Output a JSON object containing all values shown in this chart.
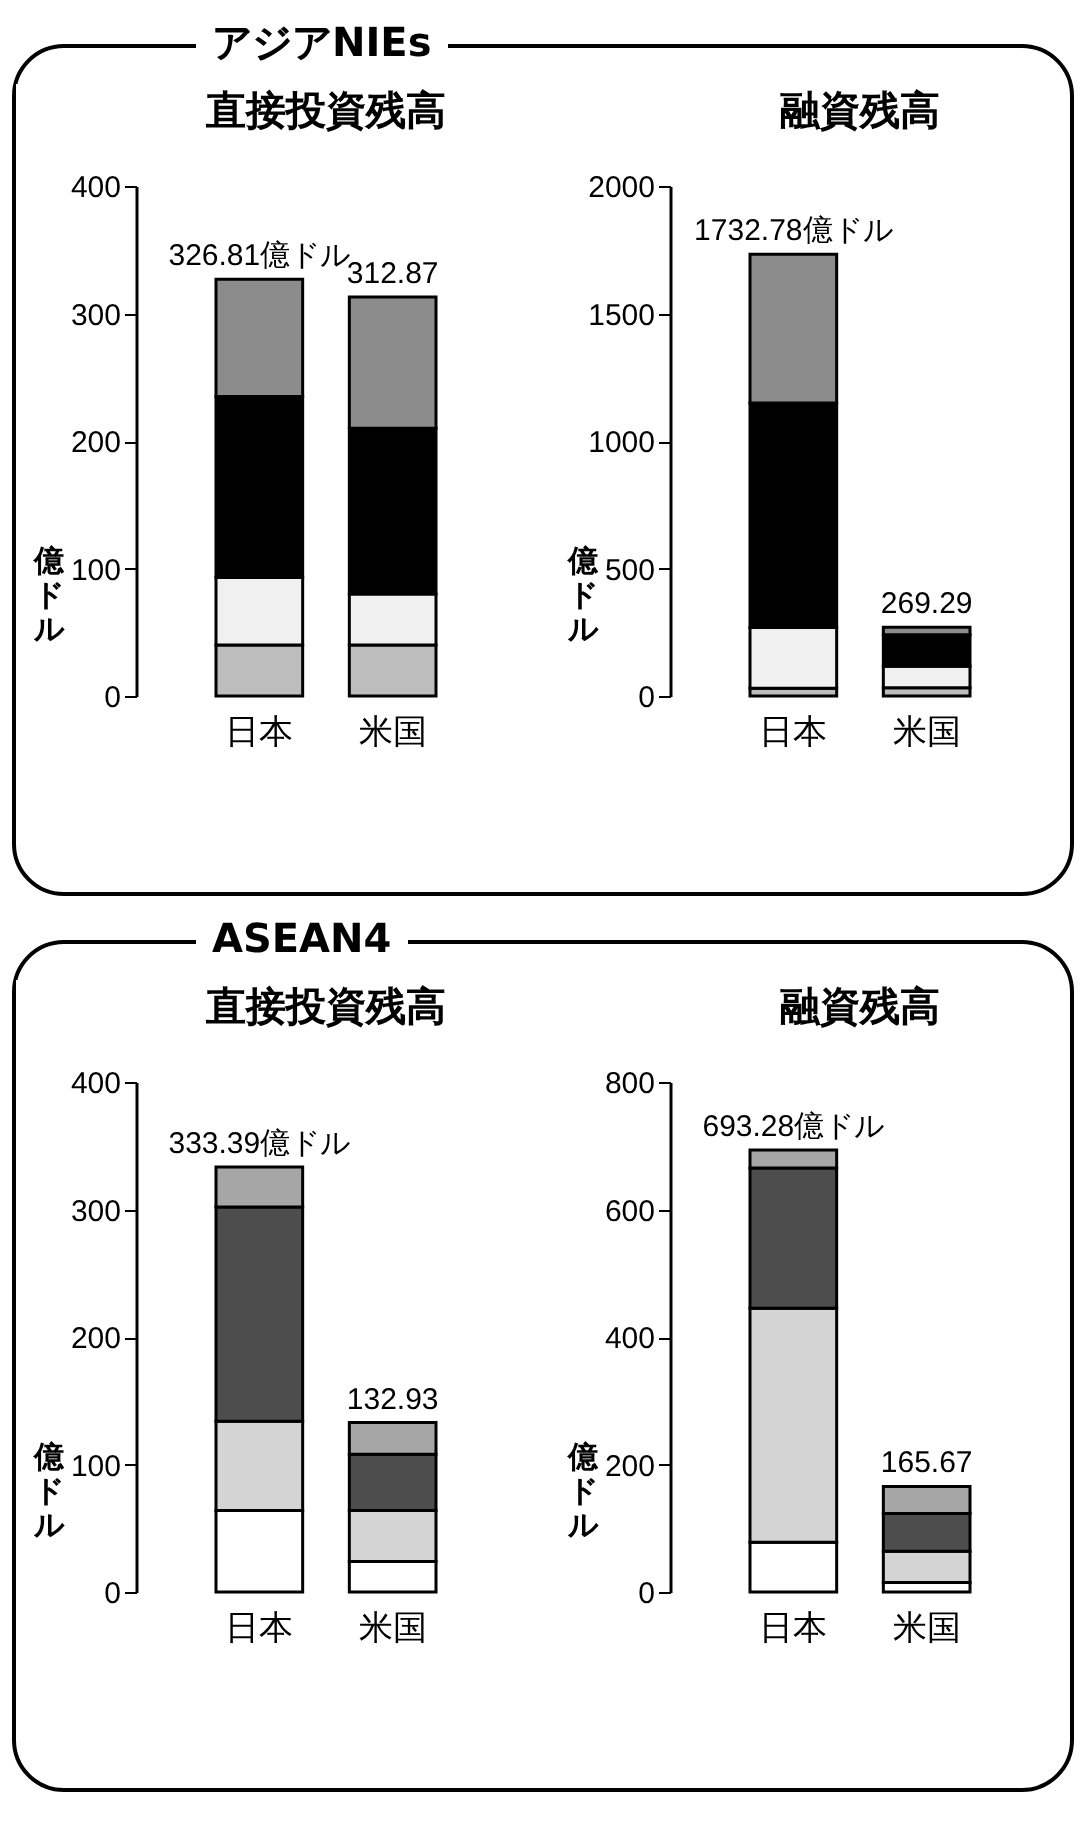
{
  "chart_data": [
    {
      "type": "bar",
      "stacked": true,
      "title": "直接投資残高",
      "ylabel": "億ドル",
      "annotations": [
        "アジアNIEs"
      ],
      "categories": [
        "日本",
        "米国"
      ],
      "ylim": [
        0,
        400
      ],
      "yticks": [
        0,
        100,
        200,
        300,
        400
      ],
      "grid": false,
      "legend": false,
      "totals": [
        "326.81億ドル",
        "312.87"
      ],
      "series": [
        {
          "color": "#bdbdbd",
          "values": [
            40,
            40
          ]
        },
        {
          "color": "#f0f0f0",
          "values": [
            53,
            40
          ]
        },
        {
          "color": "#000000",
          "values": [
            142,
            130
          ]
        },
        {
          "color": "#8c8c8c",
          "values": [
            91.81,
            102.87
          ]
        }
      ]
    },
    {
      "type": "bar",
      "stacked": true,
      "title": "融資残高",
      "ylabel": "億ドル",
      "categories": [
        "日本",
        "米国"
      ],
      "ylim": [
        0,
        2000
      ],
      "yticks": [
        0,
        500,
        1000,
        1500,
        2000
      ],
      "grid": false,
      "legend": false,
      "totals": [
        "1732.78億ドル",
        "269.29"
      ],
      "series": [
        {
          "color": "#bdbdbd",
          "values": [
            30,
            32
          ]
        },
        {
          "color": "#f0f0f0",
          "values": [
            239,
            85
          ]
        },
        {
          "color": "#000000",
          "values": [
            880,
            123
          ]
        },
        {
          "color": "#8c8c8c",
          "values": [
            583.78,
            29.29
          ]
        }
      ]
    },
    {
      "type": "bar",
      "stacked": true,
      "title": "直接投資残高",
      "ylabel": "億ドル",
      "annotations": [
        "ASEAN4"
      ],
      "categories": [
        "日本",
        "米国"
      ],
      "ylim": [
        0,
        400
      ],
      "yticks": [
        0,
        100,
        200,
        300,
        400
      ],
      "grid": false,
      "legend": false,
      "totals": [
        "333.39億ドル",
        "132.93"
      ],
      "series": [
        {
          "color": "#ffffff",
          "values": [
            64,
            24
          ]
        },
        {
          "color": "#d4d4d4",
          "values": [
            70,
            40
          ]
        },
        {
          "color": "#4d4d4d",
          "values": [
            168,
            44
          ]
        },
        {
          "color": "#a6a6a6",
          "values": [
            31.39,
            24.93
          ]
        }
      ]
    },
    {
      "type": "bar",
      "stacked": true,
      "title": "融資残高",
      "ylabel": "億ドル",
      "categories": [
        "日本",
        "米国"
      ],
      "ylim": [
        0,
        800
      ],
      "yticks": [
        0,
        200,
        400,
        600,
        800
      ],
      "grid": false,
      "legend": false,
      "totals": [
        "693.28億ドル",
        "165.67"
      ],
      "series": [
        {
          "color": "#ffffff",
          "values": [
            78,
            15
          ]
        },
        {
          "color": "#d4d4d4",
          "values": [
            367,
            49
          ]
        },
        {
          "color": "#4d4d4d",
          "values": [
            220,
            59
          ]
        },
        {
          "color": "#a6a6a6",
          "values": [
            28.28,
            42.67
          ]
        }
      ]
    }
  ]
}
